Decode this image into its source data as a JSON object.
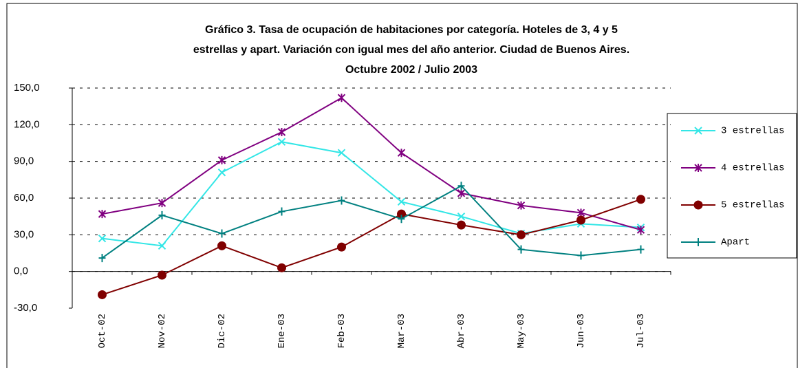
{
  "chart_data": {
    "type": "line",
    "title": [
      "Gráfico 3. Tasa de ocupación de habitaciones por categoría. Hoteles de 3, 4 y 5",
      "estrellas y apart. Variación con igual mes del año anterior. Ciudad de Buenos Aires.",
      "Octubre 2002 / Julio 2003"
    ],
    "categories": [
      "Oct-02",
      "Nov-02",
      "Dic-02",
      "Ene-03",
      "Feb-03",
      "Mar-03",
      "Abr-03",
      "May-03",
      "Jun-03",
      "Jul-03"
    ],
    "series": [
      {
        "name": "3 estrellas",
        "color": "#33e6e6",
        "marker": "x",
        "values": [
          27,
          21,
          81,
          106,
          97,
          57,
          45,
          31,
          39,
          36
        ]
      },
      {
        "name": "4 estrellas",
        "color": "#800080",
        "marker": "star",
        "values": [
          47,
          56,
          91,
          114,
          142,
          97,
          64,
          54,
          48,
          34
        ]
      },
      {
        "name": "5 estrellas",
        "color": "#800000",
        "marker": "circle",
        "values": [
          -19,
          -3,
          21,
          3,
          20,
          47,
          38,
          30,
          42,
          59
        ]
      },
      {
        "name": "Apart",
        "color": "#008080",
        "marker": "plus",
        "values": [
          11,
          46,
          31,
          49,
          58,
          43,
          70,
          18,
          13,
          18
        ]
      }
    ],
    "ylim": [
      -30,
      150
    ],
    "yticks": [
      {
        "value": -30,
        "label": "-30,0"
      },
      {
        "value": 0,
        "label": "0,0"
      },
      {
        "value": 30,
        "label": "30,0"
      },
      {
        "value": 60,
        "label": "60,0"
      },
      {
        "value": 90,
        "label": "90,0"
      },
      {
        "value": 120,
        "label": "120,0"
      },
      {
        "value": 150,
        "label": "150,0"
      }
    ],
    "grid": true,
    "legend": "right"
  }
}
